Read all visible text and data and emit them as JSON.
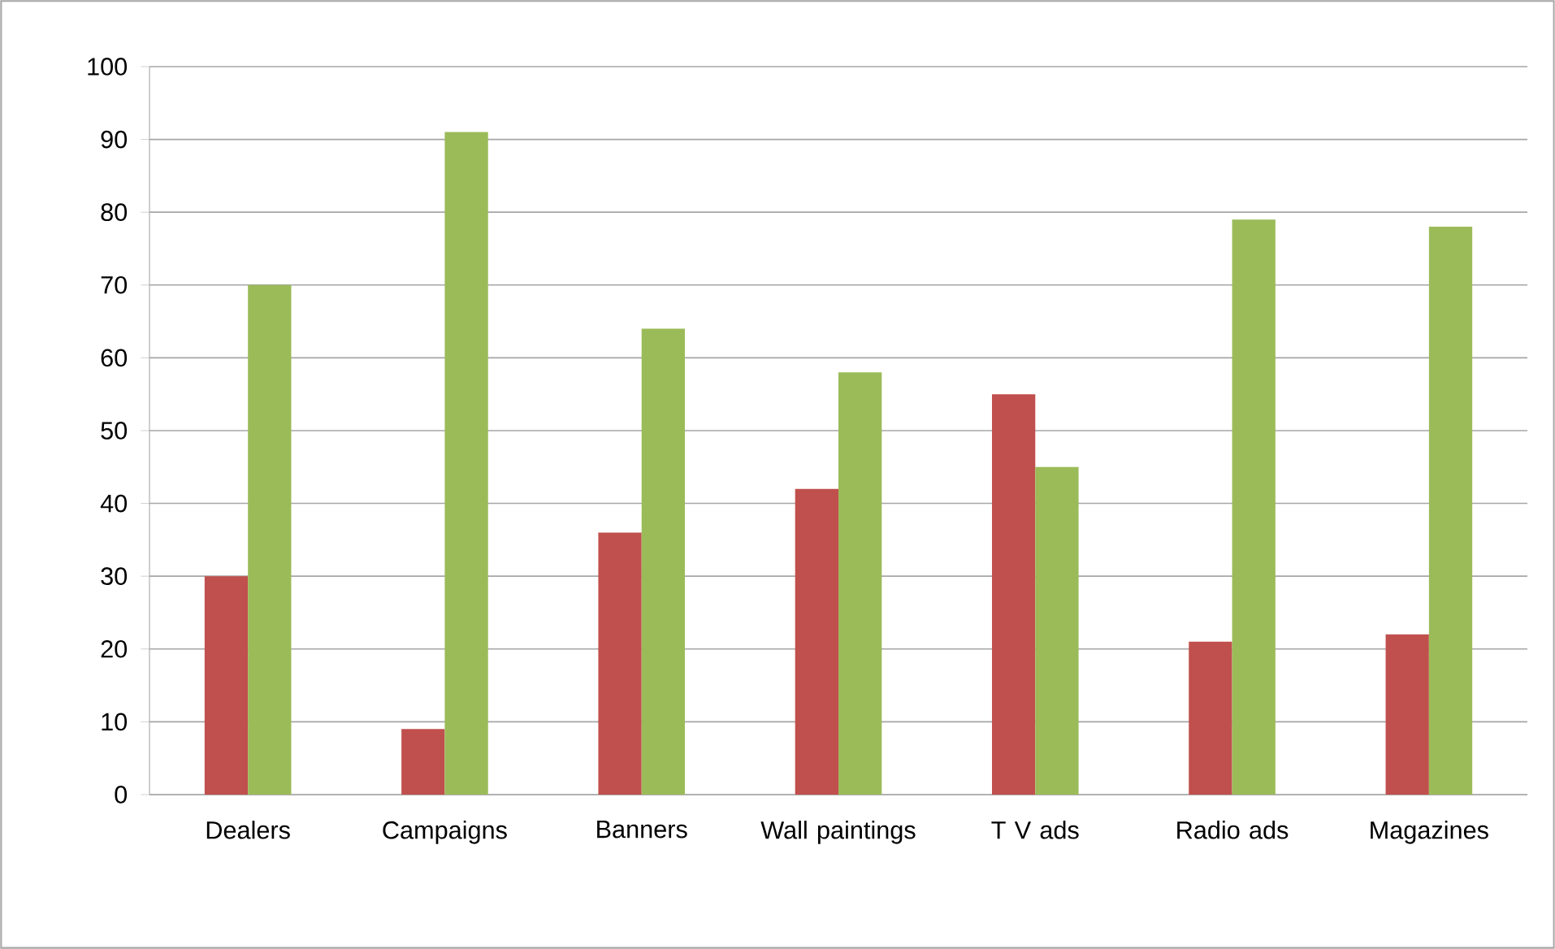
{
  "chart_data": {
    "type": "bar",
    "categories": [
      "Dealers",
      "Campaigns",
      "Banners",
      "Wall paintings",
      "T V ads",
      "Radio ads",
      "Magazines"
    ],
    "series": [
      {
        "color": "#c0504d",
        "values": [
          30,
          9,
          36,
          42,
          55,
          21,
          22
        ]
      },
      {
        "color": "#9bbb59",
        "values": [
          70,
          91,
          64,
          58,
          45,
          79,
          78
        ]
      }
    ],
    "ylim": [
      0,
      100
    ],
    "yticks": [
      0,
      10,
      20,
      30,
      40,
      50,
      60,
      70,
      80,
      90,
      100
    ],
    "grid": "y"
  }
}
